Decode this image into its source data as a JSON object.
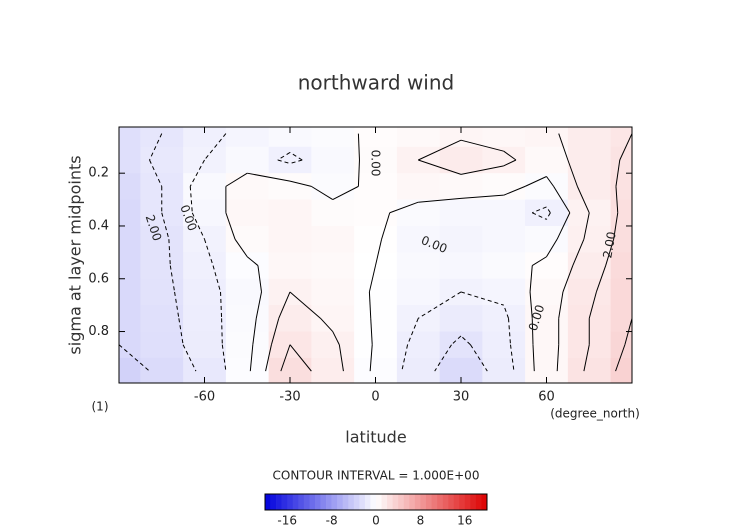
{
  "chart_data": {
    "type": "contour",
    "title": "northward wind",
    "xlabel": "latitude",
    "ylabel": "sigma at layer midpoints",
    "x_units": "(degree_north)",
    "panel_label": "(1)",
    "x": [
      -90,
      -75,
      -60,
      -45,
      -30,
      -15,
      0,
      15,
      30,
      45,
      60,
      75,
      90
    ],
    "y": [
      0.05,
      0.15,
      0.25,
      0.35,
      0.45,
      0.55,
      0.65,
      0.75,
      0.85,
      0.95
    ],
    "z": [
      [
        -2.5,
        -2,
        -1.2,
        -0.8,
        -0.5,
        -0.3,
        0.2,
        0.5,
        0.8,
        0.6,
        0.8,
        1.5,
        2
      ],
      [
        -2.5,
        -1.8,
        -1,
        -0.5,
        -1.2,
        -0.5,
        0.3,
        1,
        1.6,
        1.2,
        0.5,
        1.5,
        2.2
      ],
      [
        -2.8,
        -2,
        -0.5,
        0.5,
        0.3,
        -0.3,
        0.2,
        0.6,
        0.5,
        0.3,
        -0.3,
        1.5,
        2.3
      ],
      [
        -3,
        -2,
        -0.6,
        0.6,
        0.8,
        0.3,
        0.2,
        -0.4,
        -0.6,
        -0.6,
        -1.2,
        1,
        2.5
      ],
      [
        -3,
        -2.2,
        -1,
        0.4,
        0.8,
        0.6,
        0.1,
        -0.6,
        -0.9,
        -0.6,
        -0.4,
        1.2,
        2.6
      ],
      [
        -3,
        -2.2,
        -1.2,
        -0.2,
        0.6,
        0.5,
        0,
        -0.5,
        -0.6,
        -0.4,
        0.2,
        1.5,
        2.8
      ],
      [
        -3,
        -2.3,
        -1.3,
        -0.5,
        1,
        0.6,
        -0.1,
        -0.6,
        -1,
        -0.8,
        0.5,
        1.8,
        3
      ],
      [
        -3,
        -2.4,
        -1.4,
        -0.4,
        1.5,
        0.8,
        -0.1,
        -1,
        -1.6,
        -1.2,
        0.6,
        2,
        3
      ],
      [
        -3,
        -2.5,
        -1.5,
        -0.3,
        2,
        1.2,
        -0.1,
        -1.3,
        -2.2,
        -1.3,
        0.6,
        2,
        3.2
      ],
      [
        -3.5,
        -2.8,
        -1.8,
        -0.2,
        2.6,
        1.4,
        -0.2,
        -1.5,
        -2.8,
        -1.5,
        0.6,
        2.2,
        3.5
      ]
    ],
    "xlim": [
      -90,
      90
    ],
    "ylim": [
      0.995,
      0.025
    ],
    "xticks": [
      -60,
      -30,
      0,
      30,
      60
    ],
    "yticks": [
      0.2,
      0.4,
      0.6,
      0.8
    ],
    "contour_levels": [
      -3,
      -2,
      -1,
      0,
      1,
      2,
      3
    ],
    "contour_labels": [
      "0.00",
      "0.00",
      "0.00",
      "0.00",
      "2.00",
      "2.00"
    ],
    "contour_interval": {
      "value": 1,
      "label": "CONTOUR INTERVAL = 1.000E+00"
    },
    "colorbar": {
      "lim": [
        -20,
        20
      ],
      "ticks": [
        -16,
        -8,
        0,
        8,
        16
      ]
    }
  }
}
